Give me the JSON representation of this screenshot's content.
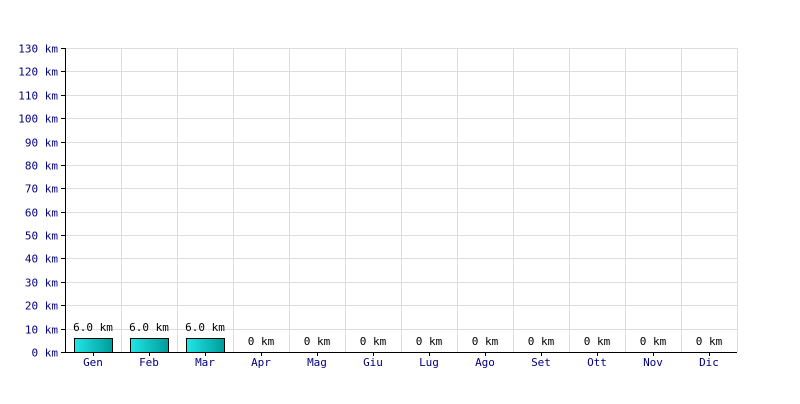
{
  "chart_data": {
    "type": "bar",
    "categories": [
      "Gen",
      "Feb",
      "Mar",
      "Apr",
      "Mag",
      "Giu",
      "Lug",
      "Ago",
      "Set",
      "Ott",
      "Nov",
      "Dic"
    ],
    "values": [
      6.0,
      6.0,
      6.0,
      0,
      0,
      0,
      0,
      0,
      0,
      0,
      0,
      0
    ],
    "data_labels": [
      "6.0 km",
      "6.0 km",
      "6.0 km",
      "0 km",
      "0 km",
      "0 km",
      "0 km",
      "0 km",
      "0 km",
      "0 km",
      "0 km",
      "0 km"
    ],
    "y_ticks": [
      0,
      10,
      20,
      30,
      40,
      50,
      60,
      70,
      80,
      90,
      100,
      110,
      120,
      130
    ],
    "y_tick_labels": [
      "0 km",
      "10 km",
      "20 km",
      "30 km",
      "40 km",
      "50 km",
      "60 km",
      "70 km",
      "80 km",
      "90 km",
      "100 km",
      "110 km",
      "120 km",
      "130 km"
    ],
    "ylim": [
      0,
      130
    ],
    "grid": true,
    "colors": {
      "bar_light": "#22e6e6",
      "bar_dark": "#009b9b",
      "bar_stroke": "#000000",
      "grid": "#dddddd",
      "axis": "#000000",
      "tick_text": "#000080",
      "label_text": "#000000"
    }
  }
}
